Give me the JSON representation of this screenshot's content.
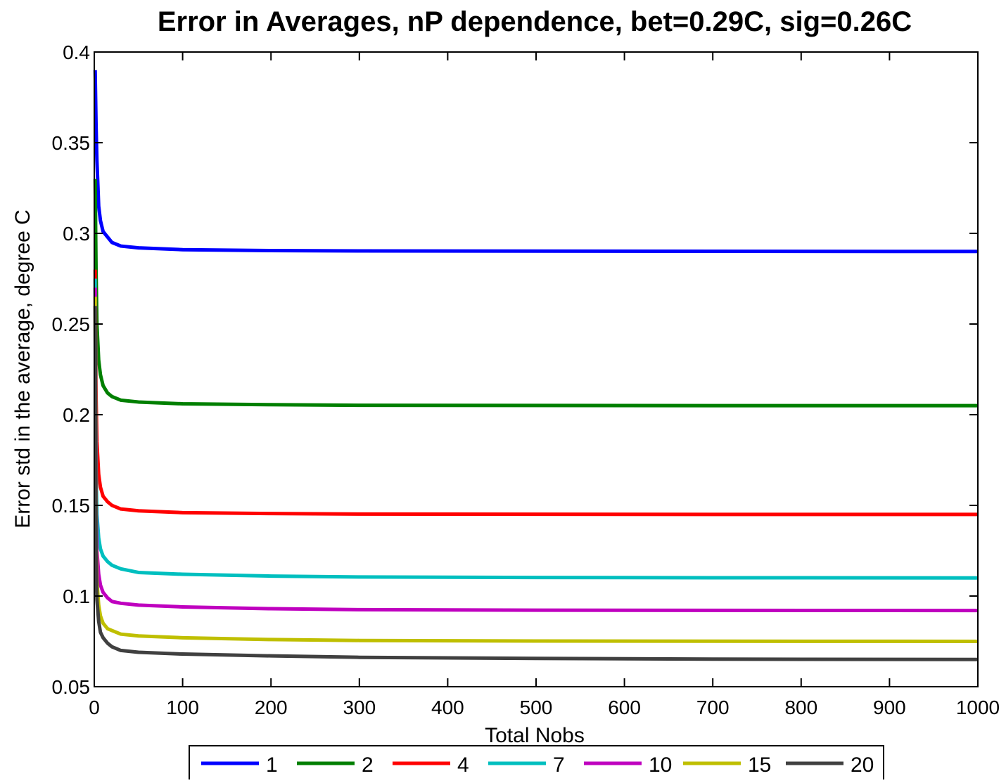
{
  "chart_data": {
    "type": "line",
    "title": "Error in Averages, nP dependence, bet=0.29C, sig=0.26C",
    "xlabel": "Total Nobs",
    "ylabel": "Error std in the average, degree C",
    "xlim": [
      0,
      1000
    ],
    "ylim": [
      0.05,
      0.4
    ],
    "xticks": [
      0,
      100,
      200,
      300,
      400,
      500,
      600,
      700,
      800,
      900,
      1000
    ],
    "yticks": [
      0.05,
      0.1,
      0.15,
      0.2,
      0.25,
      0.3,
      0.35,
      0.4
    ],
    "xtick_labels": [
      "0",
      "100",
      "200",
      "300",
      "400",
      "500",
      "600",
      "700",
      "800",
      "900",
      "1000"
    ],
    "ytick_labels": [
      "0.05",
      "0.1",
      "0.15",
      "0.2",
      "0.25",
      "0.3",
      "0.35",
      "0.4"
    ],
    "grid": false,
    "legend": {
      "placement": "bottom",
      "orientation": "horizontal"
    },
    "x": [
      1,
      2,
      3,
      5,
      7,
      10,
      15,
      20,
      30,
      50,
      100,
      200,
      300,
      500,
      700,
      1000
    ],
    "series": [
      {
        "name": "1",
        "color": "#0000ff",
        "values": [
          0.39,
          0.36,
          0.34,
          0.315,
          0.307,
          0.301,
          0.298,
          0.295,
          0.293,
          0.292,
          0.291,
          0.2905,
          0.2903,
          0.2902,
          0.2901,
          0.29
        ]
      },
      {
        "name": "2",
        "color": "#007f00",
        "values": [
          0.33,
          0.28,
          0.25,
          0.23,
          0.222,
          0.216,
          0.212,
          0.21,
          0.208,
          0.207,
          0.206,
          0.2055,
          0.2052,
          0.2051,
          0.205,
          0.205
        ]
      },
      {
        "name": "4",
        "color": "#ff0000",
        "values": [
          0.28,
          0.21,
          0.185,
          0.167,
          0.16,
          0.155,
          0.152,
          0.15,
          0.148,
          0.147,
          0.146,
          0.1455,
          0.1452,
          0.1451,
          0.145,
          0.145
        ]
      },
      {
        "name": "7",
        "color": "#00bfbf",
        "values": [
          0.275,
          0.17,
          0.145,
          0.132,
          0.126,
          0.122,
          0.119,
          0.117,
          0.115,
          0.113,
          0.112,
          0.111,
          0.1105,
          0.1102,
          0.1101,
          0.11
        ]
      },
      {
        "name": "10",
        "color": "#bf00bf",
        "values": [
          0.27,
          0.15,
          0.125,
          0.112,
          0.106,
          0.102,
          0.099,
          0.097,
          0.096,
          0.095,
          0.094,
          0.093,
          0.0925,
          0.0922,
          0.0921,
          0.092
        ]
      },
      {
        "name": "15",
        "color": "#bfbf00",
        "values": [
          0.265,
          0.13,
          0.108,
          0.095,
          0.089,
          0.085,
          0.082,
          0.081,
          0.079,
          0.078,
          0.077,
          0.076,
          0.0755,
          0.0752,
          0.0751,
          0.075
        ]
      },
      {
        "name": "20",
        "color": "#404040",
        "values": [
          0.26,
          0.12,
          0.098,
          0.086,
          0.08,
          0.077,
          0.074,
          0.072,
          0.07,
          0.069,
          0.068,
          0.067,
          0.0662,
          0.0656,
          0.0652,
          0.065
        ]
      }
    ]
  }
}
